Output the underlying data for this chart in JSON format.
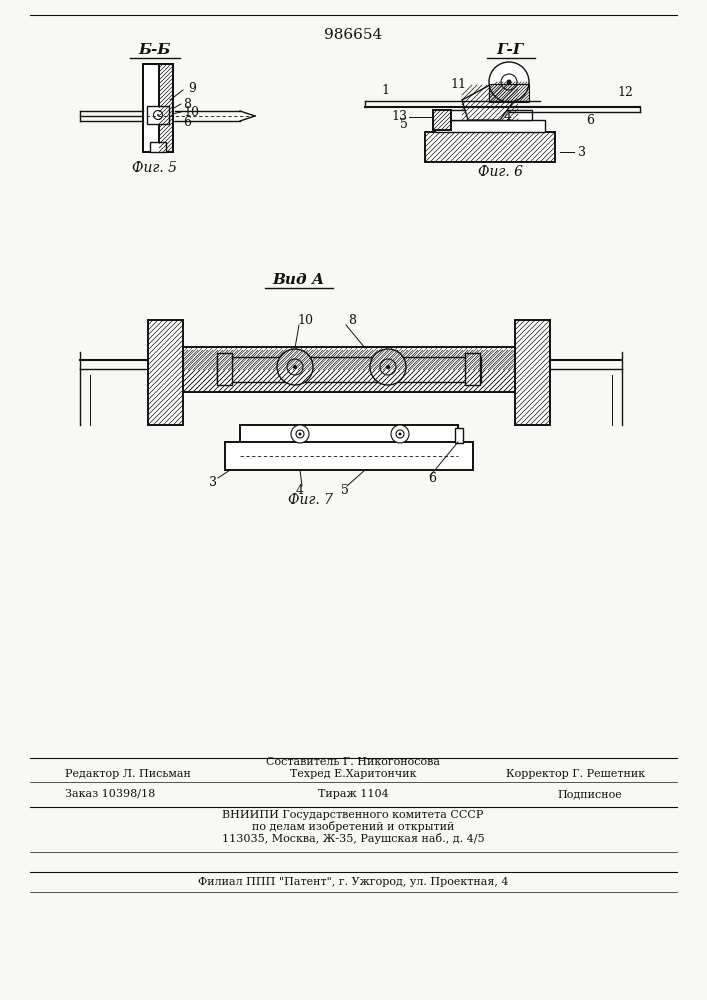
{
  "patent_number": "986654",
  "bg": "#f8f8f5",
  "lc": "#111111",
  "fig5_label": "Фиг. 5",
  "fig6_label": "Фиг. 6",
  "fig7_label": "Фиг. 7",
  "section_b_b": "Б-Б",
  "section_g_g": "Г-Г",
  "view_a": "Вид А",
  "editor_line": "Редактор Л. Письман",
  "composer_line": "Составитель Г. Никогоносова",
  "techred_line": "Техред Е.Харитончик",
  "corrector_line": "Корректор Г. Решетник",
  "order_line": "Заказ 10398/18",
  "tirazh_line": "Тираж 1104",
  "podpisnoe_line": "Подписное",
  "vniiipi_line": "ВНИИПИ Государственного комитета СССР",
  "po_delam_line": "по делам изобретений и открытий",
  "address_line": "113035, Москва, Ж-35, Раушская наб., д. 4/5",
  "filial_line": "Филиал ППП \"Патент\", г. Ужгород, ул. Проектная, 4"
}
